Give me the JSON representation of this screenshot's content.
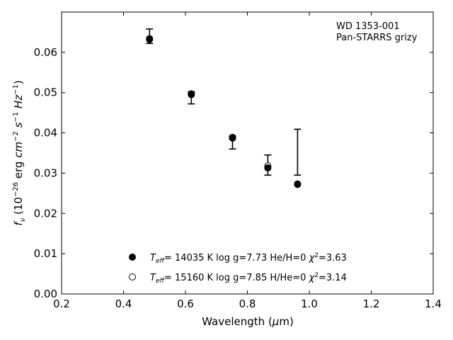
{
  "chart_data": {
    "type": "scatter",
    "xlabel": "Wavelength (μm)",
    "ylabel": "f_ν (10^−26 erg cm^−2 s^−1 Hz^−1)",
    "xlim": [
      0.2,
      1.4
    ],
    "ylim": [
      0.0,
      0.07
    ],
    "x_ticks": [
      0.2,
      0.4,
      0.6,
      0.8,
      1.0,
      1.2,
      1.4
    ],
    "x_tick_labels": [
      "0.2",
      "0.4",
      "0.6",
      "0.8",
      "1.0",
      "1.2",
      "1.4"
    ],
    "y_ticks": [
      0.0,
      0.01,
      0.02,
      0.03,
      0.04,
      0.05,
      0.06
    ],
    "y_tick_labels": [
      "0.00",
      "0.01",
      "0.02",
      "0.03",
      "0.04",
      "0.05",
      "0.06"
    ],
    "grid": false,
    "annotations": [
      "WD 1353-001",
      "Pan-STARRS grizy"
    ],
    "annotation_position": "top-right",
    "legend_position": "bottom-center",
    "observed": {
      "x": [
        0.484,
        0.619,
        0.752,
        0.866,
        0.962
      ],
      "y": [
        0.064,
        0.0494,
        0.0384,
        0.032,
        0.0352
      ],
      "yerr_low": [
        0.0018,
        0.0022,
        0.0024,
        0.0025,
        0.0057
      ],
      "yerr_high": [
        0.0018,
        0.0008,
        0.0008,
        0.0025,
        0.0057
      ]
    },
    "series": [
      {
        "name": "Teff= 14035 K  log g=7.73  He/H=0  χ²=3.63",
        "marker": "filled-circle",
        "x": [
          0.484,
          0.619,
          0.752,
          0.866,
          0.962
        ],
        "y": [
          0.0632,
          0.0495,
          0.0387,
          0.0313,
          0.0272
        ]
      },
      {
        "name": "Teff= 15160 K  log g=7.85  H/He=0  χ²=3.14",
        "marker": "open-circle",
        "x": [
          0.484,
          0.619,
          0.752,
          0.866,
          0.962
        ],
        "y": [
          0.0634,
          0.0497,
          0.0389,
          0.0318,
          0.0273
        ]
      }
    ]
  }
}
